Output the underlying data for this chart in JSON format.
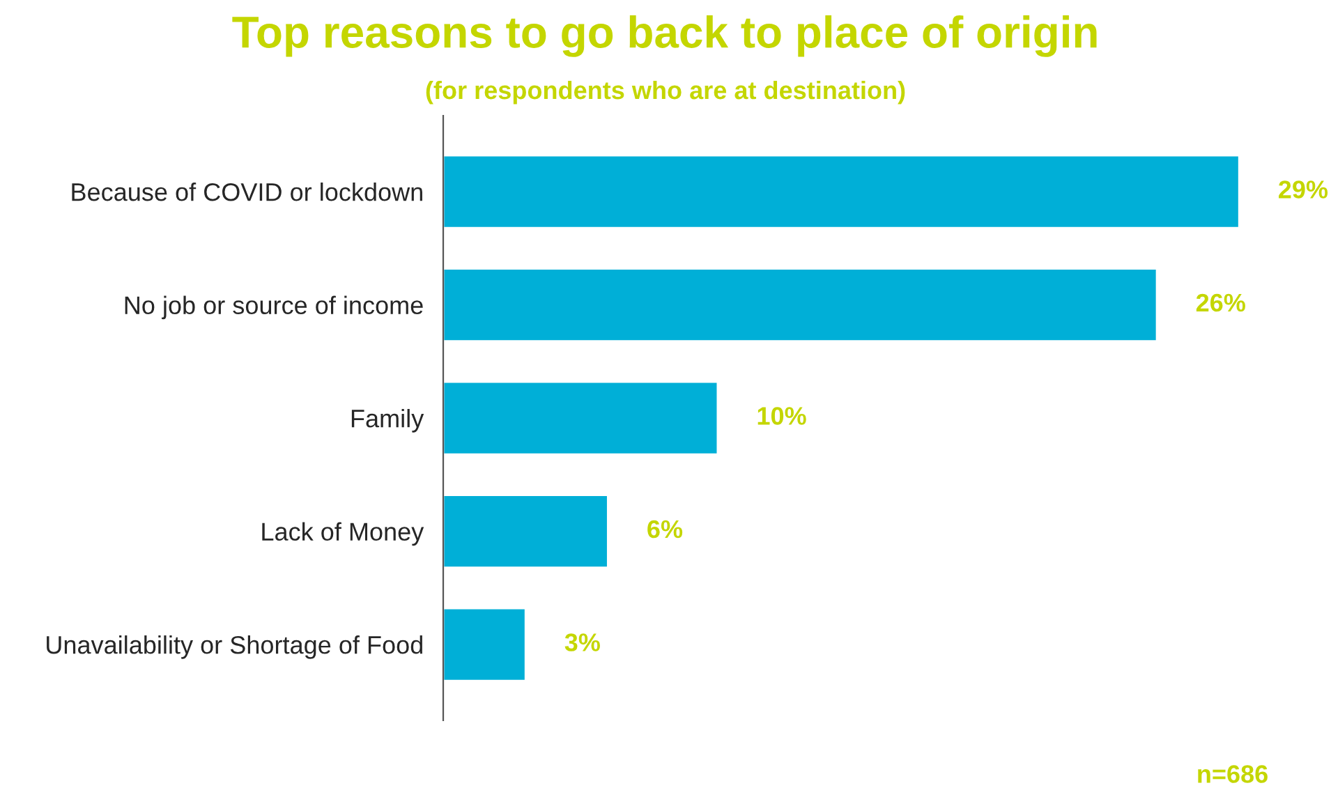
{
  "chart_data": {
    "type": "bar",
    "orientation": "horizontal",
    "title": "Top reasons to go back to place of origin",
    "subtitle": "(for respondents who are at destination)",
    "categories": [
      "Because of COVID or lockdown",
      "No job or source of income",
      "Family",
      "Lack of Money",
      "Unavailability or Shortage of Food"
    ],
    "values": [
      29,
      26,
      10,
      6,
      3
    ],
    "value_labels": [
      "29%",
      "26%",
      "10%",
      "6%",
      "3%"
    ],
    "color": "#00afd7",
    "annotations": [
      "n=686"
    ],
    "grid": false,
    "legend": false
  }
}
